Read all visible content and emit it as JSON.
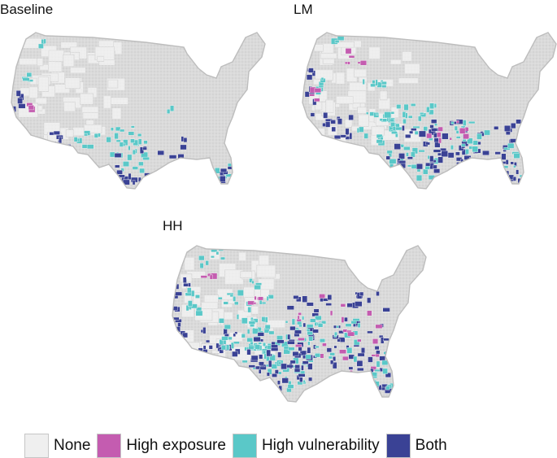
{
  "panels": [
    {
      "id": "baseline",
      "title": "Baseline"
    },
    {
      "id": "lm",
      "title": "LM"
    },
    {
      "id": "hh",
      "title": "HH"
    }
  ],
  "legend": [
    {
      "label": "None",
      "color": "#efefef"
    },
    {
      "label": "High exposure",
      "color": "#c45cb0"
    },
    {
      "label": "High vulnerability",
      "color": "#5ac8c8"
    },
    {
      "label": "Both",
      "color": "#3a4295"
    }
  ],
  "map_style": {
    "land": "#d4d4d4",
    "county_border": "#eaeaea",
    "outline": "#bdbdbd"
  }
}
